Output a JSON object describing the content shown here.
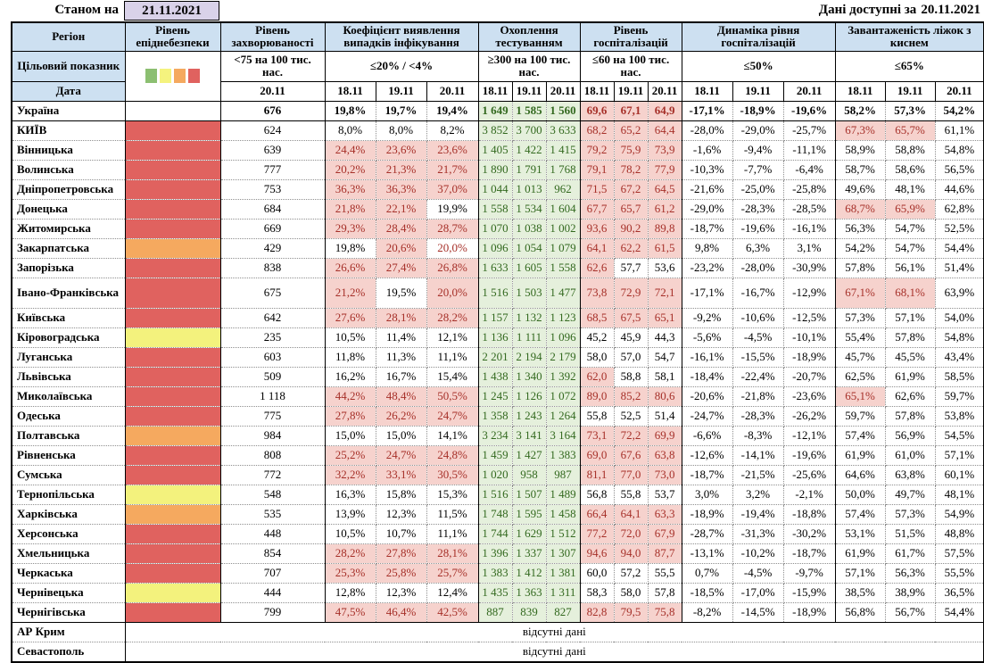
{
  "meta": {
    "as_of_label": "Станом на",
    "as_of_date": "21.11.2021",
    "available_label": "Дані доступні за",
    "available_date": "20.11.2021"
  },
  "header": {
    "region_label": "Регіон",
    "target_label": "Цільовий показник",
    "date_label": "Дата",
    "groups": [
      {
        "title": "Рівень епіднебезпеки",
        "target": ""
      },
      {
        "title": "Рівень захворюваності",
        "target": "<75 на 100 тис. нас."
      },
      {
        "title": "Коефіцієнт виявлення випадків інфікування",
        "target": "≤20% / <4%"
      },
      {
        "title": "Охоплення тестуванням",
        "target": "≥300 на 100 тис. нас."
      },
      {
        "title": "Рівень госпіталізацій",
        "target": "≤60 на 100 тис. нас."
      },
      {
        "title": "Динаміка рівня госпіталізацій",
        "target": "≤50%"
      },
      {
        "title": "Завантаженість ліжок з киснем",
        "target": "≤65%"
      }
    ],
    "date_row": [
      "20.11",
      "18.11",
      "19.11",
      "20.11",
      "18.11",
      "19.11",
      "20.11",
      "18.11",
      "19.11",
      "20.11",
      "18.11",
      "19.11",
      "20.11",
      "18.11",
      "19.11",
      "20.11"
    ]
  },
  "legend": {
    "square_colors": [
      "#8CBF71",
      "#F5F37E",
      "#F5A95F",
      "#E0625F"
    ],
    "square_names": [
      "green",
      "yellow",
      "orange",
      "red"
    ],
    "level_colors": {
      "none": "#FFFFFF",
      "red": "#E0625F",
      "orange": "#F5A95F",
      "yellow": "#F3F27D"
    }
  },
  "style_colors": {
    "header_blue": "#CDE0F1",
    "date_purple": "#D9D2E9",
    "alert_bg": "#F6D2CD",
    "alert_text": "#A63029",
    "ok_bg": "#E5F0DC",
    "ok_text": "#33691F"
  },
  "rows": [
    {
      "region": "Україна",
      "bold": true,
      "level": "none",
      "incidence": "676",
      "detection": [
        "19,8%",
        "19,7%",
        "19,4%"
      ],
      "testing": [
        "1 649",
        "1 585",
        "1 560"
      ],
      "hospital": [
        "69,6|p",
        "67,1|p",
        "64,9|p"
      ],
      "dynamics": [
        "-17,1%",
        "-18,9%",
        "-19,6%"
      ],
      "oxygen": [
        "58,2%",
        "57,3%",
        "54,2%"
      ]
    },
    {
      "region": "КИЇВ",
      "level": "red",
      "incidence": "624",
      "detection": [
        "8,0%",
        "8,0%",
        "8,2%"
      ],
      "testing": [
        "3 852",
        "3 700",
        "3 633"
      ],
      "hospital": [
        "68,2|p",
        "65,2|p",
        "64,4|p"
      ],
      "dynamics": [
        "-28,0%",
        "-29,0%",
        "-25,7%"
      ],
      "oxygen": [
        "67,3%|p",
        "65,7%|p",
        "61,1%"
      ]
    },
    {
      "region": "Вінницька",
      "level": "red",
      "incidence": "639",
      "detection": [
        "24,4%|p",
        "23,6%|p",
        "23,6%|p"
      ],
      "testing": [
        "1 405",
        "1 422",
        "1 415"
      ],
      "hospital": [
        "79,2|p",
        "75,9|p",
        "73,9|p"
      ],
      "dynamics": [
        "-1,6%",
        "-9,4%",
        "-11,1%"
      ],
      "oxygen": [
        "58,9%",
        "58,8%",
        "54,8%"
      ]
    },
    {
      "region": "Волинська",
      "level": "red",
      "incidence": "777",
      "detection": [
        "20,2%|p",
        "21,3%|p",
        "21,7%|p"
      ],
      "testing": [
        "1 890",
        "1 791",
        "1 768"
      ],
      "hospital": [
        "79,1|p",
        "78,2|p",
        "77,9|p"
      ],
      "dynamics": [
        "-10,3%",
        "-7,7%",
        "-6,4%"
      ],
      "oxygen": [
        "58,7%",
        "58,6%",
        "56,5%"
      ]
    },
    {
      "region": "Дніпропетровська",
      "level": "red",
      "incidence": "753",
      "detection": [
        "36,3%|p",
        "36,3%|p",
        "37,0%|p"
      ],
      "testing": [
        "1 044",
        "1 013",
        "962"
      ],
      "hospital": [
        "71,5|p",
        "67,2|p",
        "64,5|p"
      ],
      "dynamics": [
        "-21,6%",
        "-25,0%",
        "-25,8%"
      ],
      "oxygen": [
        "49,6%",
        "48,1%",
        "44,6%"
      ]
    },
    {
      "region": "Донецька",
      "level": "red",
      "incidence": "684",
      "detection": [
        "21,8%|p",
        "22,1%|p",
        "19,9%"
      ],
      "testing": [
        "1 558",
        "1 534",
        "1 604"
      ],
      "hospital": [
        "67,7|p",
        "65,7|p",
        "61,2|p"
      ],
      "dynamics": [
        "-29,0%",
        "-28,3%",
        "-28,5%"
      ],
      "oxygen": [
        "68,7%|p",
        "65,9%|p",
        "62,8%"
      ]
    },
    {
      "region": "Житомирська",
      "level": "red",
      "incidence": "669",
      "detection": [
        "29,3%|p",
        "28,4%|p",
        "28,7%|p"
      ],
      "testing": [
        "1 070",
        "1 038",
        "1 002"
      ],
      "hospital": [
        "93,6|p",
        "90,2|p",
        "89,8|p"
      ],
      "dynamics": [
        "-18,7%",
        "-19,6%",
        "-16,1%"
      ],
      "oxygen": [
        "56,3%",
        "54,7%",
        "52,5%"
      ]
    },
    {
      "region": "Закарпатська",
      "level": "orange",
      "incidence": "429",
      "detection": [
        "19,8%",
        "20,6%|p",
        "20,0%|r"
      ],
      "testing": [
        "1 096",
        "1 054",
        "1 079"
      ],
      "hospital": [
        "64,1|p",
        "62,2|p",
        "61,5|p"
      ],
      "dynamics": [
        "9,8%",
        "6,3%",
        "3,1%"
      ],
      "oxygen": [
        "54,2%",
        "54,7%",
        "54,4%"
      ]
    },
    {
      "region": "Запорізька",
      "level": "red",
      "incidence": "838",
      "detection": [
        "26,6%|p",
        "27,4%|p",
        "26,8%|p"
      ],
      "testing": [
        "1 633",
        "1 605",
        "1 558"
      ],
      "hospital": [
        "62,6|p",
        "57,7",
        "53,6"
      ],
      "dynamics": [
        "-23,2%",
        "-28,0%",
        "-30,9%"
      ],
      "oxygen": [
        "57,8%",
        "56,1%",
        "51,4%"
      ]
    },
    {
      "region": "Івано-Франківська",
      "tall": true,
      "level": "red",
      "incidence": "675",
      "detection": [
        "21,2%|p",
        "19,5%",
        "20,0%|p"
      ],
      "testing": [
        "1 516",
        "1 503",
        "1 477"
      ],
      "hospital": [
        "73,8|p",
        "72,9|p",
        "72,1|p"
      ],
      "dynamics": [
        "-17,1%",
        "-16,7%",
        "-12,9%"
      ],
      "oxygen": [
        "67,1%|p",
        "68,1%|p",
        "63,9%"
      ]
    },
    {
      "region": "Київська",
      "level": "red",
      "incidence": "642",
      "detection": [
        "27,6%|p",
        "28,1%|p",
        "28,2%|p"
      ],
      "testing": [
        "1 157",
        "1 132",
        "1 123"
      ],
      "hospital": [
        "68,5|p",
        "67,5|p",
        "65,1|p"
      ],
      "dynamics": [
        "-9,2%",
        "-10,6%",
        "-12,5%"
      ],
      "oxygen": [
        "57,3%",
        "57,1%",
        "54,0%"
      ]
    },
    {
      "region": "Кіровоградська",
      "level": "yellow",
      "incidence": "235",
      "detection": [
        "10,5%",
        "11,4%",
        "12,1%"
      ],
      "testing": [
        "1 136",
        "1 111",
        "1 096"
      ],
      "hospital": [
        "45,2",
        "45,9",
        "44,3"
      ],
      "dynamics": [
        "-5,6%",
        "-4,5%",
        "-10,1%"
      ],
      "oxygen": [
        "55,4%",
        "57,8%",
        "54,8%"
      ]
    },
    {
      "region": "Луганська",
      "level": "red",
      "incidence": "603",
      "detection": [
        "11,8%",
        "11,3%",
        "11,1%"
      ],
      "testing": [
        "2 201",
        "2 194",
        "2 179"
      ],
      "hospital": [
        "58,0",
        "57,0",
        "54,7"
      ],
      "dynamics": [
        "-16,1%",
        "-15,5%",
        "-18,9%"
      ],
      "oxygen": [
        "45,7%",
        "45,5%",
        "43,4%"
      ]
    },
    {
      "region": "Львівська",
      "level": "red",
      "incidence": "509",
      "detection": [
        "16,2%",
        "16,7%",
        "15,4%"
      ],
      "testing": [
        "1 438",
        "1 340",
        "1 392"
      ],
      "hospital": [
        "62,0|p",
        "58,8",
        "58,1"
      ],
      "dynamics": [
        "-18,4%",
        "-22,4%",
        "-20,7%"
      ],
      "oxygen": [
        "62,5%",
        "61,9%",
        "58,5%"
      ]
    },
    {
      "region": "Миколаївська",
      "level": "red",
      "incidence": "1 118",
      "detection": [
        "44,2%|p",
        "48,4%|p",
        "50,5%|p"
      ],
      "testing": [
        "1 245",
        "1 126",
        "1 072"
      ],
      "hospital": [
        "89,0|p",
        "85,2|p",
        "80,6|p"
      ],
      "dynamics": [
        "-20,6%",
        "-21,8%",
        "-23,6%"
      ],
      "oxygen": [
        "65,1%|p",
        "62,6%",
        "59,7%"
      ]
    },
    {
      "region": "Одеська",
      "level": "red",
      "incidence": "775",
      "detection": [
        "27,8%|p",
        "26,2%|p",
        "24,7%|p"
      ],
      "testing": [
        "1 358",
        "1 243",
        "1 264"
      ],
      "hospital": [
        "55,8",
        "52,5",
        "51,4"
      ],
      "dynamics": [
        "-24,7%",
        "-28,3%",
        "-26,2%"
      ],
      "oxygen": [
        "59,7%",
        "57,8%",
        "53,8%"
      ]
    },
    {
      "region": "Полтавська",
      "level": "orange",
      "incidence": "984",
      "detection": [
        "15,0%",
        "15,0%",
        "14,1%"
      ],
      "testing": [
        "3 234",
        "3 141",
        "3 164"
      ],
      "hospital": [
        "73,1|p",
        "72,2|p",
        "69,9|p"
      ],
      "dynamics": [
        "-6,6%",
        "-8,3%",
        "-12,1%"
      ],
      "oxygen": [
        "57,4%",
        "56,9%",
        "54,5%"
      ]
    },
    {
      "region": "Рівненська",
      "level": "red",
      "incidence": "808",
      "detection": [
        "25,2%|p",
        "24,7%|p",
        "24,8%|p"
      ],
      "testing": [
        "1 459",
        "1 427",
        "1 383"
      ],
      "hospital": [
        "69,0|p",
        "67,6|p",
        "63,8|p"
      ],
      "dynamics": [
        "-12,6%",
        "-14,1%",
        "-19,6%"
      ],
      "oxygen": [
        "61,9%",
        "61,0%",
        "57,1%"
      ]
    },
    {
      "region": "Сумська",
      "level": "red",
      "incidence": "772",
      "detection": [
        "32,2%|p",
        "33,1%|p",
        "30,5%|p"
      ],
      "testing": [
        "1 020",
        "958",
        "987"
      ],
      "hospital": [
        "81,1|p",
        "77,0|p",
        "73,0|p"
      ],
      "dynamics": [
        "-18,7%",
        "-21,5%",
        "-25,6%"
      ],
      "oxygen": [
        "64,6%",
        "63,8%",
        "60,1%"
      ]
    },
    {
      "region": "Тернопільська",
      "level": "yellow",
      "incidence": "548",
      "detection": [
        "16,3%",
        "15,8%",
        "15,3%"
      ],
      "testing": [
        "1 516",
        "1 507",
        "1 489"
      ],
      "hospital": [
        "56,8",
        "55,8",
        "53,7"
      ],
      "dynamics": [
        "3,0%",
        "3,2%",
        "-2,1%"
      ],
      "oxygen": [
        "50,0%",
        "49,7%",
        "48,1%"
      ]
    },
    {
      "region": "Харківська",
      "level": "orange",
      "incidence": "535",
      "detection": [
        "13,9%",
        "12,3%",
        "11,5%"
      ],
      "testing": [
        "1 748",
        "1 595",
        "1 458"
      ],
      "hospital": [
        "66,4|p",
        "64,1|p",
        "63,3|p"
      ],
      "dynamics": [
        "-18,9%",
        "-19,4%",
        "-18,8%"
      ],
      "oxygen": [
        "57,4%",
        "57,3%",
        "54,9%"
      ]
    },
    {
      "region": "Херсонська",
      "level": "red",
      "incidence": "448",
      "detection": [
        "10,5%",
        "10,7%",
        "11,1%"
      ],
      "testing": [
        "1 744",
        "1 629",
        "1 512"
      ],
      "hospital": [
        "77,2|p",
        "72,0|p",
        "67,9|p"
      ],
      "dynamics": [
        "-28,7%",
        "-31,3%",
        "-30,2%"
      ],
      "oxygen": [
        "53,1%",
        "51,5%",
        "48,8%"
      ]
    },
    {
      "region": "Хмельницька",
      "level": "red",
      "incidence": "854",
      "detection": [
        "28,2%|p",
        "27,8%|p",
        "28,1%|p"
      ],
      "testing": [
        "1 396",
        "1 337",
        "1 307"
      ],
      "hospital": [
        "94,6|p",
        "94,0|p",
        "87,7|p"
      ],
      "dynamics": [
        "-13,1%",
        "-10,2%",
        "-18,7%"
      ],
      "oxygen": [
        "61,9%",
        "61,7%",
        "57,5%"
      ]
    },
    {
      "region": "Черкаська",
      "level": "red",
      "incidence": "707",
      "detection": [
        "25,3%|p",
        "25,8%|p",
        "25,7%|p"
      ],
      "testing": [
        "1 383",
        "1 412",
        "1 381"
      ],
      "hospital": [
        "60,0",
        "57,2",
        "55,5"
      ],
      "dynamics": [
        "0,7%",
        "-4,5%",
        "-9,7%"
      ],
      "oxygen": [
        "57,1%",
        "56,3%",
        "55,5%"
      ]
    },
    {
      "region": "Чернівецька",
      "level": "yellow",
      "incidence": "444",
      "detection": [
        "12,8%",
        "12,3%",
        "12,4%"
      ],
      "testing": [
        "1 435",
        "1 363",
        "1 311"
      ],
      "hospital": [
        "58,3",
        "58,0",
        "57,8"
      ],
      "dynamics": [
        "-18,5%",
        "-17,0%",
        "-15,9%"
      ],
      "oxygen": [
        "38,5%",
        "38,9%",
        "36,5%"
      ]
    },
    {
      "region": "Чернігівська",
      "level": "red",
      "incidence": "799",
      "detection": [
        "47,5%|p",
        "46,4%|p",
        "42,5%|p"
      ],
      "testing": [
        "887",
        "839",
        "827"
      ],
      "hospital": [
        "82,8|p",
        "79,5|p",
        "75,8|p"
      ],
      "dynamics": [
        "-8,2%",
        "-14,5%",
        "-18,9%"
      ],
      "oxygen": [
        "56,8%",
        "56,7%",
        "54,4%"
      ]
    }
  ],
  "no_data_rows": [
    {
      "region": "АР Крим",
      "text": "відсутні дані"
    },
    {
      "region": "Севастополь",
      "text": "відсутні дані"
    }
  ]
}
